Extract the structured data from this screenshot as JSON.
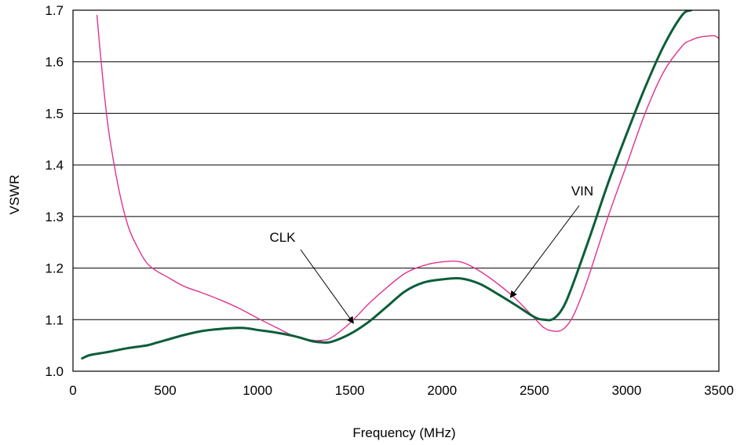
{
  "chart_data": {
    "type": "line",
    "title": "",
    "xlabel": "Frequency (MHz)",
    "ylabel": "VSWR",
    "xlim": [
      0,
      3500
    ],
    "ylim": [
      1.0,
      1.7
    ],
    "xticks": [
      0,
      500,
      1000,
      1500,
      2000,
      2500,
      3000,
      3500
    ],
    "yticks": [
      1.0,
      1.1,
      1.2,
      1.3,
      1.4,
      1.5,
      1.6,
      1.7
    ],
    "xtick_labels": [
      "0",
      "500",
      "1000",
      "1500",
      "2000",
      "2500",
      "3000",
      "3500"
    ],
    "ytick_labels": [
      "1.0",
      "1.1",
      "1.2",
      "1.3",
      "1.4",
      "1.5",
      "1.6",
      "1.7"
    ],
    "grid": "horizontal",
    "series": [
      {
        "name": "CLK",
        "color": "#e0338f",
        "x": [
          130,
          150,
          175,
          200,
          250,
          300,
          350,
          400,
          450,
          500,
          600,
          700,
          800,
          900,
          1000,
          1100,
          1200,
          1300,
          1350,
          1400,
          1500,
          1600,
          1700,
          1800,
          1900,
          2000,
          2100,
          2200,
          2300,
          2400,
          2500,
          2550,
          2600,
          2650,
          2700,
          2750,
          2800,
          2900,
          3000,
          3100,
          3200,
          3300,
          3350,
          3400,
          3450,
          3480,
          3500
        ],
        "y": [
          1.69,
          1.61,
          1.52,
          1.45,
          1.35,
          1.28,
          1.24,
          1.21,
          1.195,
          1.185,
          1.165,
          1.152,
          1.138,
          1.122,
          1.103,
          1.085,
          1.068,
          1.06,
          1.06,
          1.065,
          1.093,
          1.13,
          1.162,
          1.19,
          1.205,
          1.212,
          1.212,
          1.195,
          1.17,
          1.14,
          1.103,
          1.085,
          1.078,
          1.08,
          1.1,
          1.14,
          1.19,
          1.3,
          1.4,
          1.5,
          1.58,
          1.63,
          1.642,
          1.648,
          1.65,
          1.65,
          1.645
        ]
      },
      {
        "name": "VIN",
        "color": "#0b5d3a",
        "x": [
          50,
          80,
          100,
          150,
          200,
          300,
          400,
          450,
          500,
          600,
          700,
          800,
          900,
          950,
          1000,
          1100,
          1200,
          1300,
          1350,
          1400,
          1500,
          1600,
          1700,
          1800,
          1900,
          2000,
          2100,
          2200,
          2300,
          2400,
          2500,
          2550,
          2600,
          2650,
          2700,
          2800,
          2900,
          3000,
          3100,
          3200,
          3300,
          3350
        ],
        "y": [
          1.025,
          1.03,
          1.032,
          1.035,
          1.038,
          1.045,
          1.05,
          1.055,
          1.06,
          1.07,
          1.078,
          1.082,
          1.084,
          1.083,
          1.08,
          1.075,
          1.068,
          1.058,
          1.056,
          1.057,
          1.072,
          1.095,
          1.125,
          1.155,
          1.172,
          1.178,
          1.18,
          1.17,
          1.15,
          1.128,
          1.105,
          1.1,
          1.101,
          1.12,
          1.16,
          1.26,
          1.365,
          1.46,
          1.55,
          1.63,
          1.69,
          1.7
        ]
      }
    ],
    "annotations": [
      {
        "text": "CLK",
        "target": [
          1520,
          1.093
        ]
      },
      {
        "text": "VIN",
        "target": [
          2370,
          1.143
        ]
      }
    ]
  }
}
